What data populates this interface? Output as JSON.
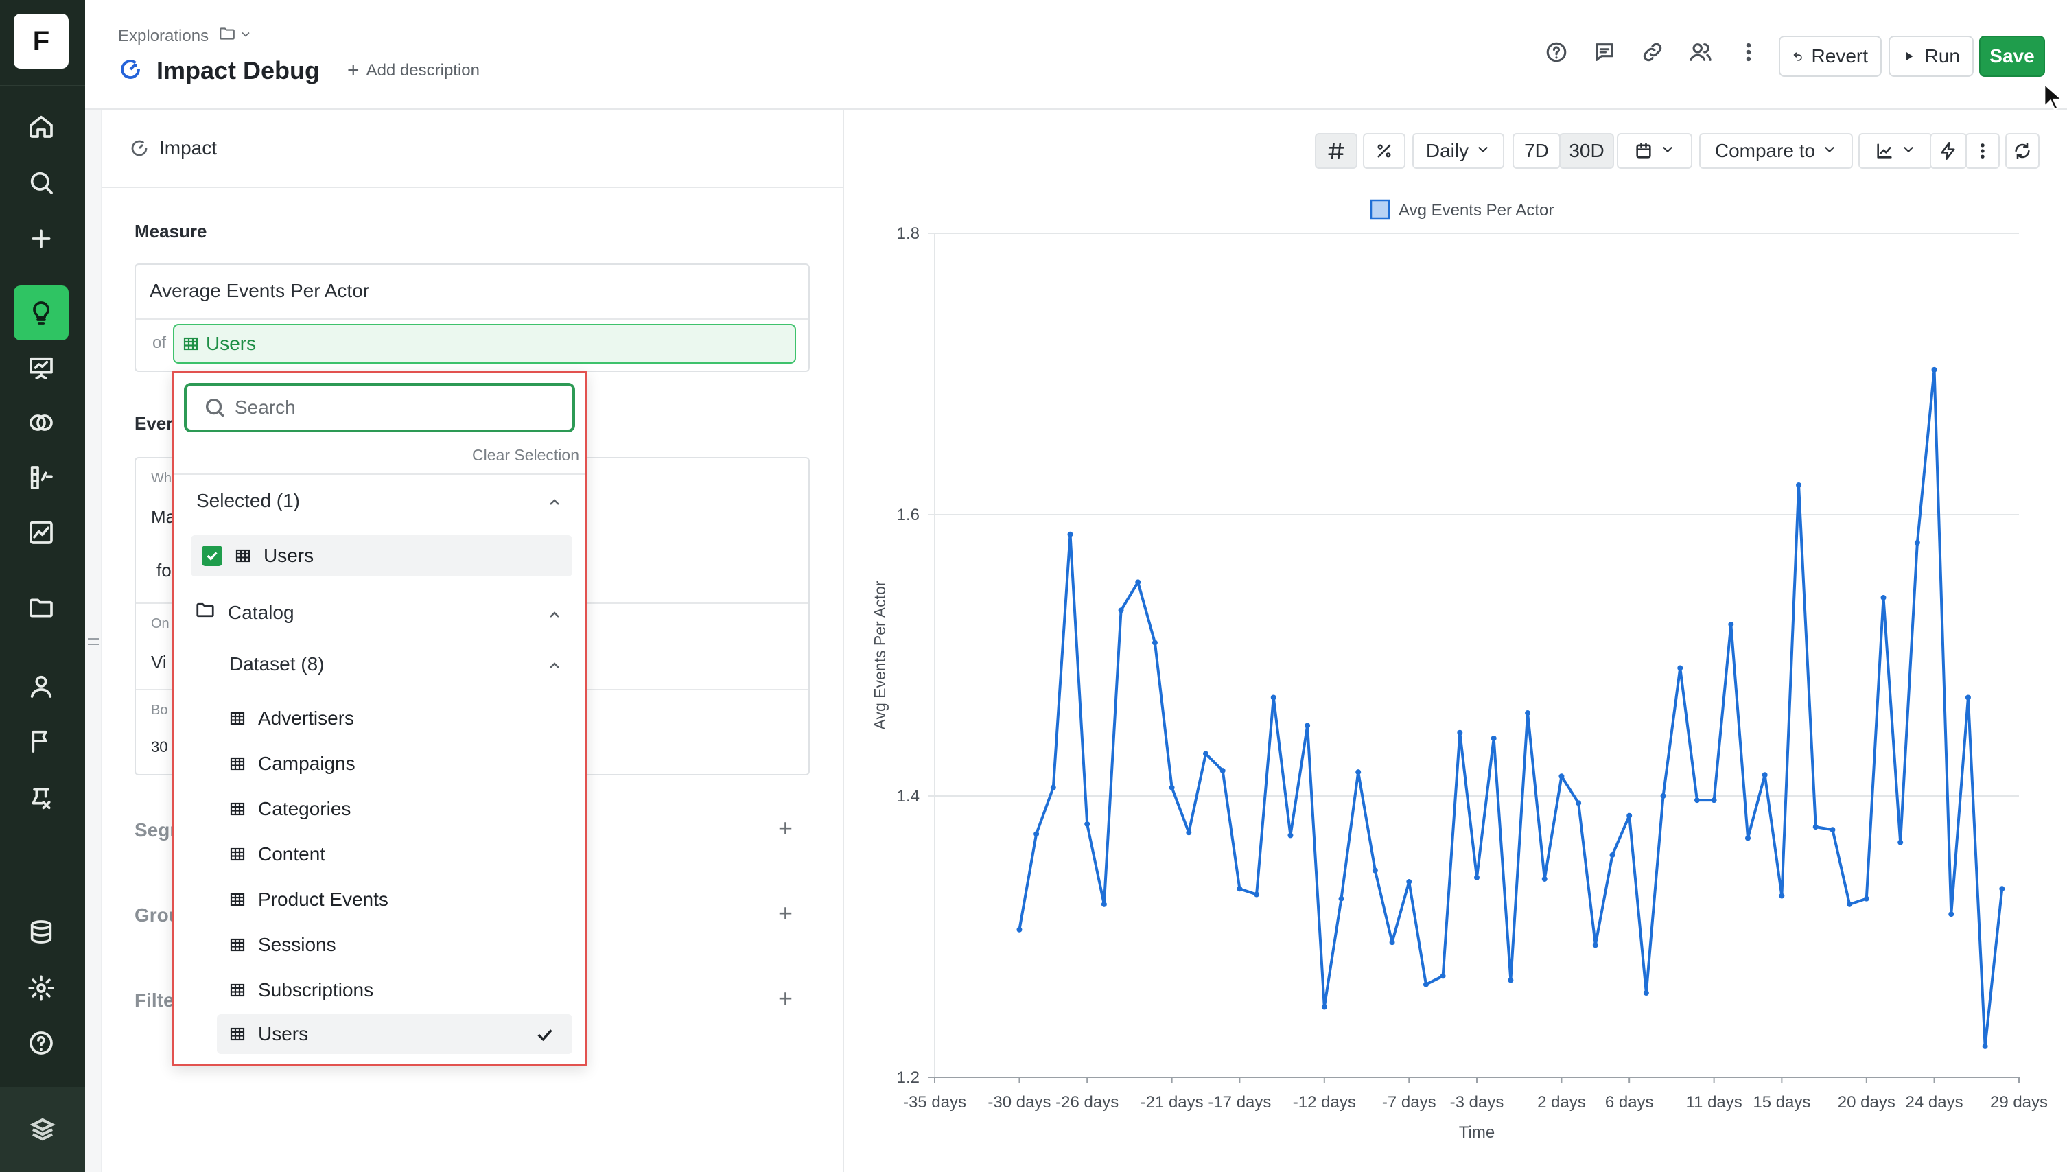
{
  "app": {
    "logo_letter": "F"
  },
  "rail": {
    "items": [
      {
        "name": "home-icon"
      },
      {
        "name": "search-icon"
      },
      {
        "name": "plus-icon"
      },
      {
        "name": "lightbulb-icon",
        "active": true
      },
      {
        "name": "presentation-icon"
      },
      {
        "name": "overlap-icon"
      },
      {
        "name": "metrics-icon"
      },
      {
        "name": "chart-icon"
      },
      {
        "name": "folder-icon"
      },
      {
        "name": "user-icon"
      },
      {
        "name": "flag-icon"
      },
      {
        "name": "experiment-icon"
      },
      {
        "name": "database-icon"
      },
      {
        "name": "gear-icon"
      },
      {
        "name": "help-icon"
      }
    ]
  },
  "header": {
    "breadcrumb": "Explorations",
    "title": "Impact Debug",
    "add_description": "Add description",
    "buttons": {
      "revert": "Revert",
      "run": "Run",
      "save": "Save"
    }
  },
  "left_panel": {
    "tab_label": "Impact",
    "measure_label": "Measure",
    "measure_value": "Average Events Per Actor",
    "of_label": "of",
    "of_entity": "Users",
    "events_label_partial": "Ever",
    "ghost_texts": {
      "wh": "Wh",
      "ma": "Ma",
      "fo": "fo",
      "on": "On",
      "vi": "Vi",
      "bo": "Bo",
      "n30": "30"
    },
    "segments_partial": "Segr",
    "group_partial": "Grou",
    "filter_partial": "Filte"
  },
  "dropdown": {
    "search_placeholder": "Search",
    "clear_selection": "Clear Selection",
    "selected_header": "Selected (1)",
    "selected_items": [
      "Users"
    ],
    "catalog_header": "Catalog",
    "dataset_header": "Dataset (8)",
    "datasets": [
      "Advertisers",
      "Campaigns",
      "Categories",
      "Content",
      "Product Events",
      "Sessions",
      "Subscriptions",
      "Users"
    ],
    "selected_dataset": "Users"
  },
  "toolbar": {
    "granularity": "Daily",
    "range_7d": "7D",
    "range_30d": "30D",
    "compare": "Compare to"
  },
  "chart_data": {
    "type": "line",
    "legend": "Avg Events Per Actor",
    "xlabel": "Time",
    "ylabel": "Avg Events Per Actor",
    "ylim": [
      1.2,
      1.8
    ],
    "yticks": [
      "1.8",
      "1.6",
      "1.4",
      "1.2"
    ],
    "xlim": [
      -35,
      29
    ],
    "xticks": [
      "-35 days",
      "-30 days",
      "-26 days",
      "-21 days",
      "-17 days",
      "-12 days",
      "-7 days",
      "-3 days",
      "2 days",
      "6 days",
      "11 days",
      "15 days",
      "20 days",
      "24 days",
      "29 days"
    ],
    "xtick_values": [
      -35,
      -30,
      -26,
      -21,
      -17,
      -12,
      -7,
      -3,
      2,
      6,
      11,
      15,
      20,
      24,
      29
    ],
    "color": "#1f6fd6",
    "x": [
      -30,
      -29,
      -28,
      -27,
      -26,
      -25,
      -24,
      -23,
      -22,
      -21,
      -20,
      -19,
      -18,
      -17,
      -16,
      -15,
      -14,
      -13,
      -12,
      -11,
      -10,
      -9,
      -8,
      -7,
      -6,
      -5,
      -4,
      -3,
      -2,
      -1,
      0,
      1,
      2,
      3,
      4,
      5,
      6,
      7,
      8,
      9,
      10,
      11,
      12,
      13,
      14,
      15,
      16,
      17,
      18,
      19,
      20,
      21,
      22,
      23,
      24,
      25,
      26,
      27,
      28
    ],
    "values": [
      1.305,
      1.373,
      1.406,
      1.586,
      1.38,
      1.323,
      1.532,
      1.552,
      1.509,
      1.406,
      1.374,
      1.43,
      1.418,
      1.334,
      1.33,
      1.47,
      1.372,
      1.45,
      1.25,
      1.327,
      1.417,
      1.347,
      1.296,
      1.339,
      1.266,
      1.272,
      1.445,
      1.342,
      1.441,
      1.269,
      1.459,
      1.341,
      1.414,
      1.395,
      1.294,
      1.358,
      1.386,
      1.26,
      1.4,
      1.491,
      1.397,
      1.397,
      1.522,
      1.37,
      1.415,
      1.329,
      1.621,
      1.378,
      1.376,
      1.323,
      1.327,
      1.541,
      1.367,
      1.58,
      1.703,
      1.316,
      1.47,
      1.222,
      1.334
    ]
  }
}
